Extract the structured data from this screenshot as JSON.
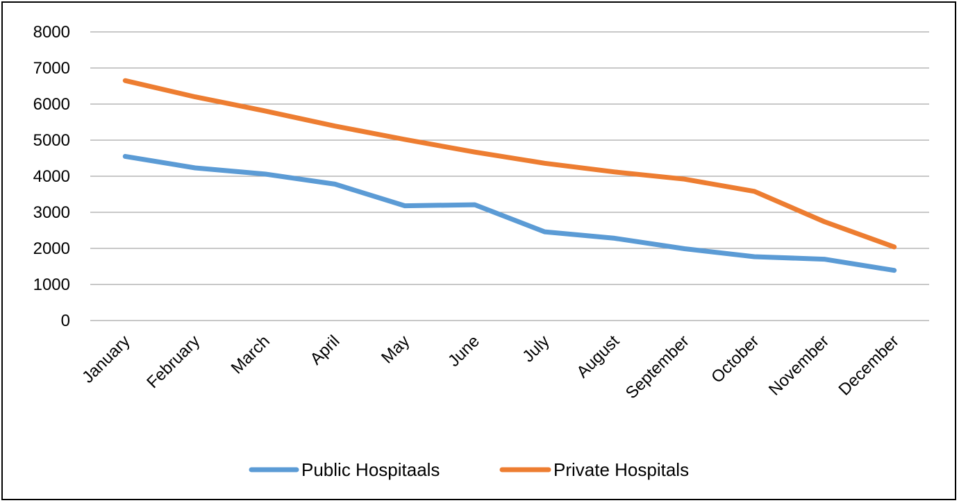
{
  "chart_data": {
    "type": "line",
    "categories": [
      "January",
      "February",
      "March",
      "April",
      "May",
      "June",
      "July",
      "August",
      "September",
      "October",
      "November",
      "December"
    ],
    "series": [
      {
        "name": "Public Hospitaals",
        "color": "#5b9bd5",
        "values": [
          4550,
          4230,
          4060,
          3780,
          3180,
          3210,
          2460,
          2280,
          1990,
          1770,
          1700,
          1390
        ]
      },
      {
        "name": "Private Hospitals",
        "color": "#ed7d31",
        "values": [
          6650,
          6200,
          5810,
          5390,
          5020,
          4670,
          4360,
          4120,
          3920,
          3580,
          2740,
          2040
        ]
      }
    ],
    "y_ticks": [
      "0",
      "1000",
      "2000",
      "3000",
      "4000",
      "5000",
      "6000",
      "7000",
      "8000"
    ],
    "ylim": [
      0,
      8000
    ],
    "grid": true,
    "legend_position": "bottom",
    "gridline_color": "#a6a6a6"
  }
}
